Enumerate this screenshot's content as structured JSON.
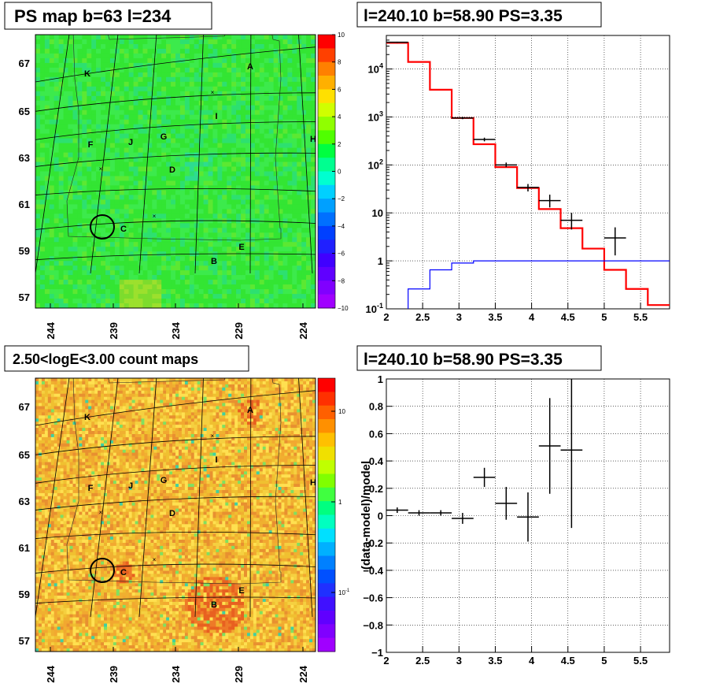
{
  "colors": {
    "model_red": "#ff0000",
    "bkg_blue": "#0000ff",
    "data_black": "#000000"
  },
  "chart_data": [
    {
      "type": "heatmap",
      "title": "PS map b=63 l=234",
      "x_ticks": [
        "244",
        "239",
        "234",
        "229",
        "224"
      ],
      "y_ticks": [
        "67",
        "65",
        "63",
        "61",
        "59",
        "57"
      ],
      "colorbar_ticks": [
        "10",
        "8",
        "6",
        "4",
        "2",
        "0",
        "−2",
        "−4",
        "−6",
        "−8",
        "−10"
      ],
      "colorbar_range": [
        -10,
        10
      ],
      "sources": [
        "A",
        "B",
        "C",
        "D",
        "E",
        "F",
        "G",
        "H",
        "I",
        "J",
        "K"
      ]
    },
    {
      "type": "line",
      "title": "l=240.10 b=58.90 PS=3.35",
      "x_ticks": [
        "2",
        "2.5",
        "3",
        "3.5",
        "4",
        "4.5",
        "5",
        "5.5"
      ],
      "y_ticks": [
        "10^-1",
        "1",
        "10",
        "10^2",
        "10^3",
        "10^4"
      ],
      "xlim": [
        2,
        5.9
      ],
      "ylim": [
        0.1,
        50000
      ],
      "y_scale": "log",
      "grid": true,
      "series": [
        {
          "style": "step",
          "color": "red",
          "edges": [
            2.0,
            2.3,
            2.6,
            2.9,
            3.2,
            3.5,
            3.8,
            4.1,
            4.4,
            4.7,
            5.0,
            5.3,
            5.6,
            5.9
          ],
          "values": [
            35000,
            14000,
            3700,
            950,
            270,
            90,
            33,
            12,
            4.8,
            1.8,
            0.65,
            0.26,
            0.12
          ]
        },
        {
          "style": "step",
          "color": "blue",
          "edges": [
            2.3,
            2.6,
            2.9,
            3.2,
            3.5,
            3.8,
            4.1,
            4.4,
            4.7,
            5.0,
            5.3,
            5.6,
            5.9
          ],
          "values": [
            0.26,
            0.65,
            0.9,
            1.0,
            1.0,
            1.0,
            1.0,
            1.0,
            1.0,
            1.0,
            1.0,
            1.0
          ]
        },
        {
          "style": "errorbars",
          "color": "black",
          "points": [
            {
              "x": 2.15,
              "xerr": 0.15,
              "y": 36000,
              "ylo": 35000,
              "yhi": 37000
            },
            {
              "x": 3.05,
              "xerr": 0.15,
              "y": 950,
              "ylo": 900,
              "yhi": 1000
            },
            {
              "x": 3.35,
              "xerr": 0.15,
              "y": 340,
              "ylo": 310,
              "yhi": 370
            },
            {
              "x": 3.65,
              "xerr": 0.15,
              "y": 100,
              "ylo": 90,
              "yhi": 112
            },
            {
              "x": 3.95,
              "xerr": 0.15,
              "y": 34,
              "ylo": 28,
              "yhi": 40
            },
            {
              "x": 4.25,
              "xerr": 0.15,
              "y": 18,
              "ylo": 13,
              "yhi": 24
            },
            {
              "x": 4.55,
              "xerr": 0.15,
              "y": 7,
              "ylo": 4.5,
              "yhi": 10
            },
            {
              "x": 5.15,
              "xerr": 0.15,
              "y": 3,
              "ylo": 1.3,
              "yhi": 5
            }
          ]
        }
      ]
    },
    {
      "type": "heatmap",
      "title": "2.50<logE<3.00 count maps",
      "x_ticks": [
        "244",
        "239",
        "234",
        "229",
        "224"
      ],
      "y_ticks": [
        "67",
        "65",
        "63",
        "61",
        "59",
        "57"
      ],
      "colorbar_ticks": [
        "10",
        "1",
        "10^-1"
      ],
      "sources": [
        "A",
        "B",
        "C",
        "D",
        "E",
        "F",
        "G",
        "H",
        "I",
        "J",
        "K"
      ]
    },
    {
      "type": "scatter",
      "title": "l=240.10 b=58.90 PS=3.35",
      "ylabel": "(data-model)/model",
      "x_ticks": [
        "2",
        "2.5",
        "3",
        "3.5",
        "4",
        "4.5",
        "5",
        "5.5"
      ],
      "y_ticks": [
        "1",
        "0.8",
        "0.6",
        "0.4",
        "0.2",
        "0",
        "−0.2",
        "−0.4",
        "−0.6",
        "−0.8",
        "−1"
      ],
      "xlim": [
        2,
        5.9
      ],
      "ylim": [
        -1,
        1
      ],
      "grid": true,
      "points": [
        {
          "x": 2.15,
          "xerr": 0.15,
          "y": 0.04,
          "yerr": 0.02
        },
        {
          "x": 2.45,
          "xerr": 0.15,
          "y": 0.02,
          "yerr": 0.02
        },
        {
          "x": 2.75,
          "xerr": 0.15,
          "y": 0.02,
          "yerr": 0.02
        },
        {
          "x": 3.05,
          "xerr": 0.15,
          "y": -0.02,
          "yerr": 0.04
        },
        {
          "x": 3.35,
          "xerr": 0.15,
          "y": 0.28,
          "yerr": 0.07
        },
        {
          "x": 3.65,
          "xerr": 0.15,
          "y": 0.09,
          "yerr": 0.12
        },
        {
          "x": 3.95,
          "xerr": 0.15,
          "y": -0.01,
          "yerr": 0.18
        },
        {
          "x": 4.25,
          "xerr": 0.15,
          "y": 0.51,
          "yerr": 0.35
        },
        {
          "x": 4.55,
          "xerr": 0.15,
          "y": 0.48,
          "yerr": 0.57
        }
      ]
    }
  ]
}
